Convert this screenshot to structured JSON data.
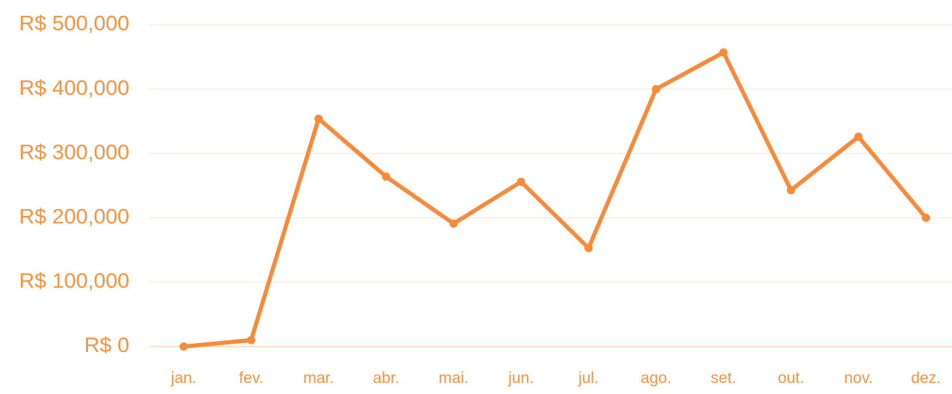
{
  "chart_data": {
    "type": "line",
    "categories": [
      "jan.",
      "fev.",
      "mar.",
      "abr.",
      "mai.",
      "jun.",
      "jul.",
      "ago.",
      "set.",
      "out.",
      "nov.",
      "dez."
    ],
    "series": [
      {
        "color": "#f78b3b",
        "values": [
          0,
          10000,
          354000,
          264000,
          191000,
          256000,
          153000,
          400000,
          457000,
          243000,
          326000,
          200000
        ]
      }
    ],
    "ylim": [
      0,
      500000
    ],
    "yticks": [
      {
        "value": 0,
        "label": "R$ 0"
      },
      {
        "value": 100000,
        "label": "R$ 100,000"
      },
      {
        "value": 200000,
        "label": "R$ 200,000"
      },
      {
        "value": 300000,
        "label": "R$ 300,000"
      },
      {
        "value": 400000,
        "label": "R$ 400,000"
      },
      {
        "value": 500000,
        "label": "R$ 500,000"
      }
    ],
    "grid": true
  }
}
